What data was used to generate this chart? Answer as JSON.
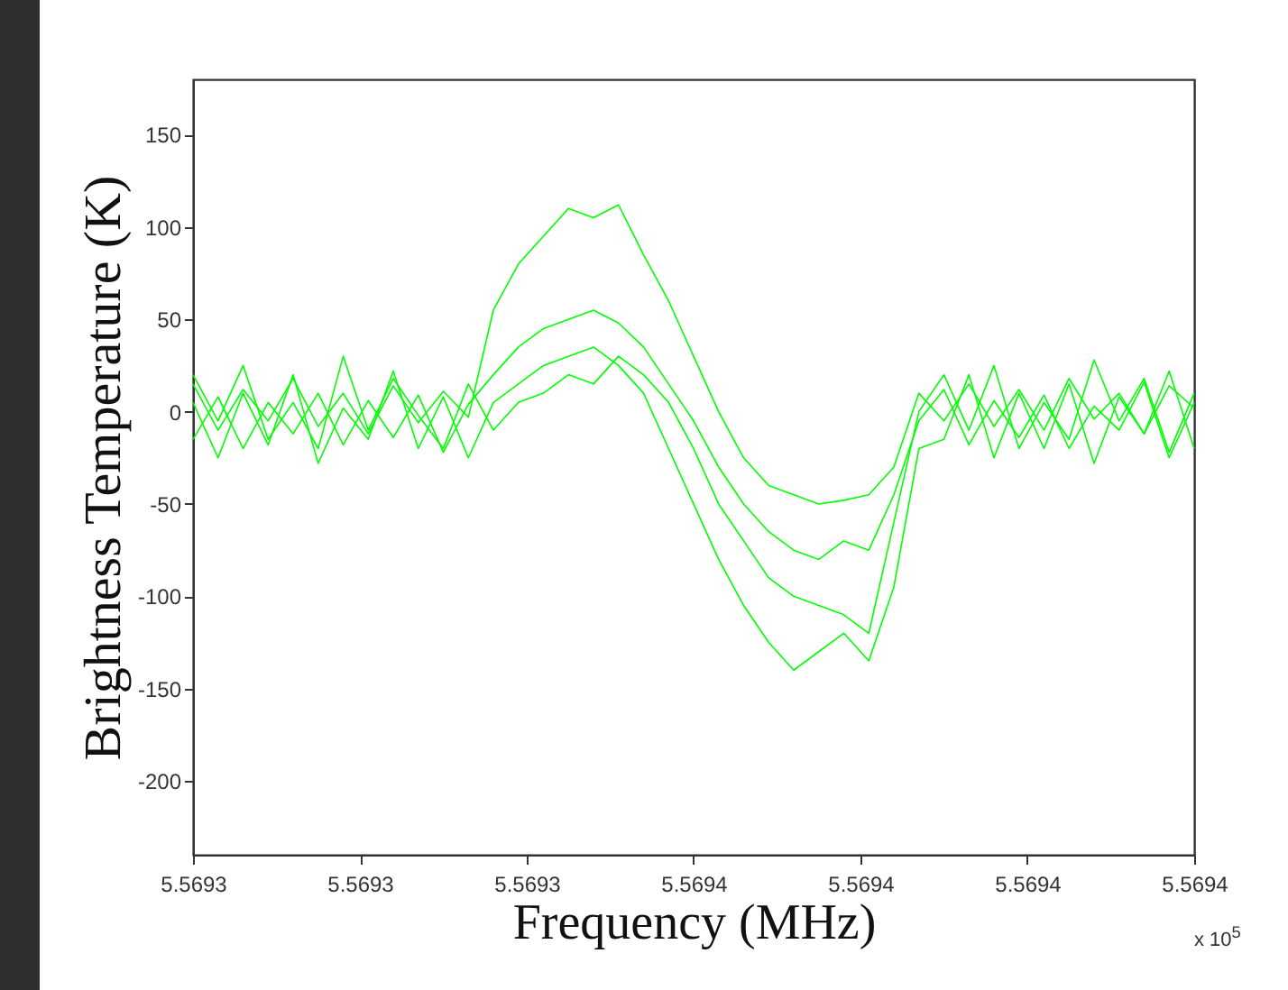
{
  "chart_data": {
    "type": "line",
    "xlabel": "Frequency (MHz)",
    "ylabel": "Brightness Temperature (K)",
    "annotations": [
      "x 10$^{5}$"
    ],
    "x": [
      5.5693,
      5.569303,
      5.569306,
      5.569309,
      5.569312,
      5.569315,
      5.569318,
      5.569321,
      5.569324,
      5.569327,
      5.56933,
      5.569333,
      5.569336,
      5.569339,
      5.569342,
      5.569345,
      5.569348,
      5.569351,
      5.569354,
      5.569357,
      5.56936,
      5.569363,
      5.569366,
      5.569369,
      5.569372,
      5.569375,
      5.569378,
      5.569381,
      5.569384,
      5.569387,
      5.56939,
      5.569393,
      5.569396,
      5.569399,
      5.569402,
      5.569405,
      5.569408,
      5.569411,
      5.569414,
      5.569417,
      5.56942
    ],
    "series": [
      {
        "color": "#00ff00",
        "values": [
          15,
          -10,
          12,
          -5,
          18,
          -8,
          10,
          -12,
          14,
          -6,
          11,
          -3,
          55,
          80,
          95,
          110,
          105,
          112,
          85,
          60,
          30,
          0,
          -25,
          -40,
          -45,
          -50,
          -48,
          -45,
          -30,
          10,
          -5,
          15,
          -8,
          12,
          -10,
          18,
          -4,
          10,
          -12,
          14,
          2
        ]
      },
      {
        "color": "#00ff00",
        "values": [
          -15,
          8,
          -20,
          5,
          -12,
          10,
          -18,
          6,
          -14,
          9,
          -22,
          4,
          20,
          35,
          45,
          50,
          55,
          48,
          35,
          15,
          -5,
          -30,
          -50,
          -65,
          -75,
          -80,
          -70,
          -75,
          -45,
          -5,
          12,
          -18,
          6,
          -14,
          9,
          -20,
          3,
          -10,
          16,
          -25,
          5
        ]
      },
      {
        "color": "#00ff00",
        "values": [
          5,
          -25,
          10,
          -18,
          20,
          -28,
          2,
          -15,
          22,
          -20,
          8,
          -25,
          5,
          15,
          25,
          30,
          35,
          25,
          10,
          -20,
          -50,
          -80,
          -105,
          -125,
          -140,
          -130,
          -120,
          -135,
          -95,
          -20,
          -15,
          20,
          -25,
          10,
          -20,
          15,
          -28,
          8,
          -12,
          22,
          -20
        ]
      },
      {
        "color": "#00ff00",
        "values": [
          20,
          -5,
          25,
          -15,
          5,
          -20,
          30,
          -10,
          18,
          -2,
          -20,
          15,
          -10,
          5,
          10,
          20,
          15,
          30,
          20,
          5,
          -20,
          -50,
          -70,
          -90,
          -100,
          -105,
          -110,
          -120,
          -60,
          0,
          20,
          -10,
          25,
          -20,
          5,
          -15,
          28,
          -5,
          18,
          -22,
          10
        ]
      }
    ],
    "xlim": [
      5.5693,
      5.56942
    ],
    "xticks": [
      {
        "value": 5.5693,
        "label": "5.5693"
      },
      {
        "value": 5.56932,
        "label": "5.5693"
      },
      {
        "value": 5.56934,
        "label": "5.5693"
      },
      {
        "value": 5.56936,
        "label": "5.5694"
      },
      {
        "value": 5.56938,
        "label": "5.5694"
      },
      {
        "value": 5.5694,
        "label": "5.5694"
      },
      {
        "value": 5.56942,
        "label": "5.5694"
      }
    ],
    "ylim": [
      -240,
      180
    ],
    "yticks": [
      -200,
      -150,
      -100,
      -50,
      0,
      50,
      100,
      150
    ],
    "grid": false,
    "legend": false,
    "marker": "none",
    "line_style": "solid"
  }
}
